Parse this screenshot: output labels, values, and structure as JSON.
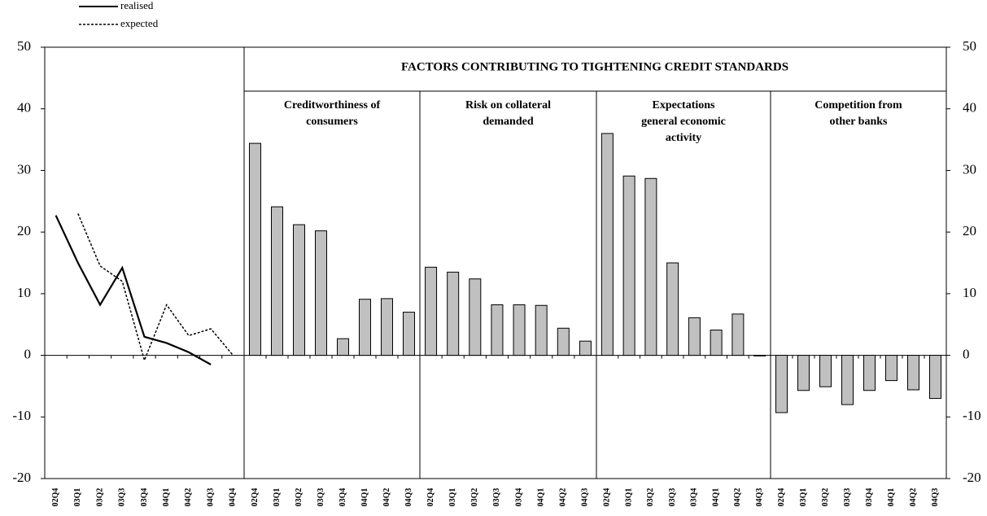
{
  "chart_data": [
    {
      "type": "line",
      "categories": [
        "02Q4",
        "03Q1",
        "03Q2",
        "03Q3",
        "03Q4",
        "04Q1",
        "04Q2",
        "04Q3",
        "04Q4"
      ],
      "series": [
        {
          "name": "realised",
          "color": "#000000",
          "dash": "solid",
          "values": [
            22.7,
            15.0,
            8.2,
            14.2,
            3.0,
            2.0,
            0.5,
            -1.5,
            null
          ]
        },
        {
          "name": "expected",
          "color": "#000000",
          "dash": "dotted",
          "values": [
            null,
            23.0,
            14.5,
            12.0,
            -0.8,
            8.2,
            3.2,
            4.3,
            0
          ]
        }
      ],
      "ylim": [
        -20,
        50
      ],
      "yticks": [
        -20,
        -10,
        0,
        10,
        20,
        30,
        40,
        50
      ],
      "legend": "top-left",
      "grid": false
    },
    {
      "type": "bar",
      "title": "FACTORS CONTRIBUTING TO TIGHTENING CREDIT STANDARDS",
      "color": "#c0c0c0",
      "panels": [
        {
          "title": [
            "Creditworthiness of",
            "consumers"
          ],
          "categories": [
            "02Q4",
            "03Q1",
            "03Q2",
            "03Q3",
            "03Q4",
            "04Q1",
            "04Q2",
            "04Q3"
          ],
          "values": [
            34.4,
            24.1,
            21.2,
            20.2,
            2.7,
            9.1,
            9.2,
            7.0
          ]
        },
        {
          "title": [
            "Risk on collateral",
            "demanded"
          ],
          "categories": [
            "02Q4",
            "03Q1",
            "03Q2",
            "03Q3",
            "03Q4",
            "04Q1",
            "04Q2",
            "04Q3"
          ],
          "values": [
            14.3,
            13.5,
            12.4,
            8.2,
            8.2,
            8.1,
            4.4,
            2.3
          ]
        },
        {
          "title": [
            "Expectations",
            "general economic",
            "activity"
          ],
          "categories": [
            "02Q4",
            "03Q1",
            "03Q2",
            "03Q3",
            "03Q4",
            "04Q1",
            "04Q2",
            "04Q3"
          ],
          "values": [
            36.0,
            29.1,
            28.7,
            15.0,
            6.1,
            4.1,
            6.7,
            -0.1
          ]
        },
        {
          "title": [
            "Competition from",
            "other banks"
          ],
          "categories": [
            "02Q4",
            "03Q1",
            "03Q2",
            "03Q3",
            "03Q4",
            "04Q1",
            "04Q2",
            "04Q3"
          ],
          "values": [
            -9.3,
            -5.7,
            -5.1,
            -8.0,
            -5.7,
            -4.1,
            -5.6,
            -7.0
          ]
        }
      ],
      "y2lim": [
        -20,
        50
      ],
      "y2ticks": [
        -20,
        -10,
        0,
        10,
        20,
        30,
        40,
        50
      ]
    }
  ]
}
